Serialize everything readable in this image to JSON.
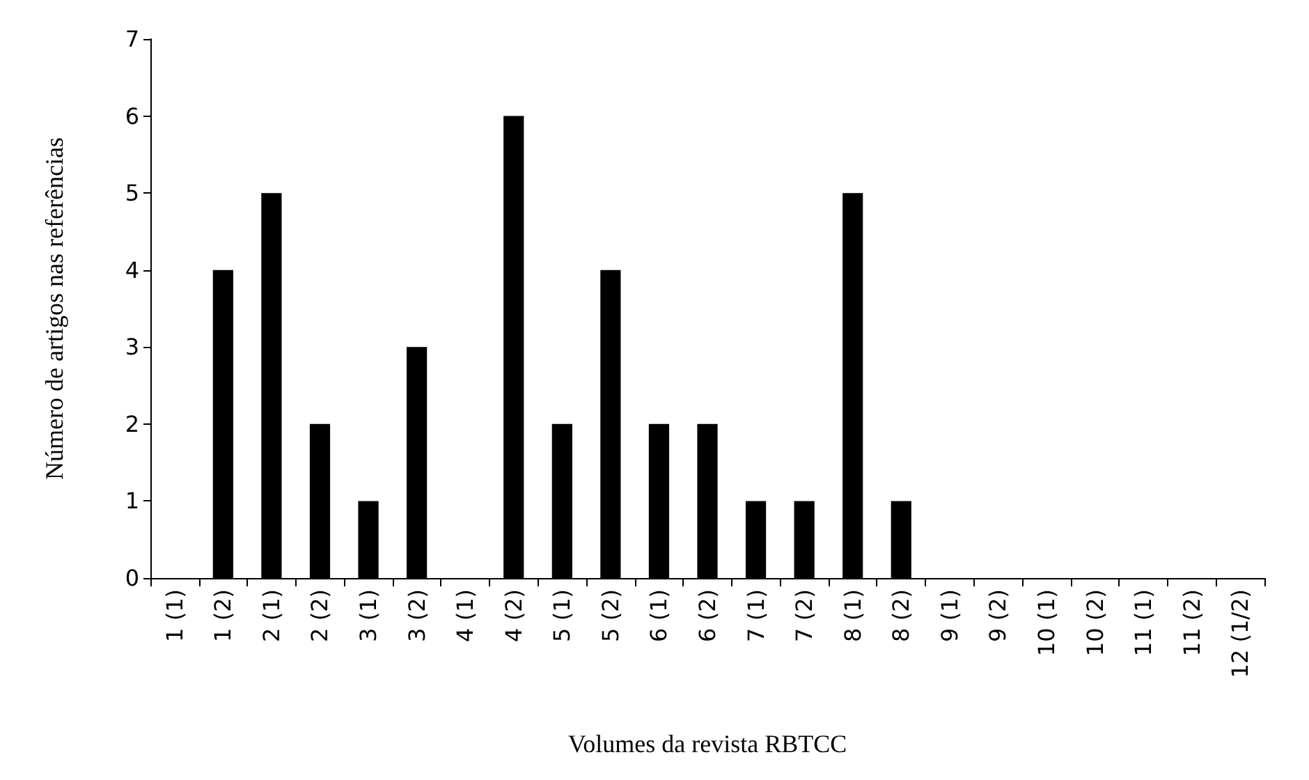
{
  "chart_data": {
    "type": "bar",
    "xlabel": "Volumes da revista RBTCC",
    "ylabel": "Número de artigos nas referências",
    "categories": [
      "1 (1)",
      "1 (2)",
      "2 (1)",
      "2 (2)",
      "3 (1)",
      "3 (2)",
      "4 (1)",
      "4 (2)",
      "5 (1)",
      "5 (2)",
      "6 (1)",
      "6 (2)",
      "7 (1)",
      "7 (2)",
      "8 (1)",
      "8 (2)",
      "9 (1)",
      "9 (2)",
      "10 (1)",
      "10 (2)",
      "11 (1)",
      "11 (2)",
      "12 (1/2)"
    ],
    "values": [
      0,
      4,
      5,
      2,
      1,
      3,
      0,
      6,
      2,
      4,
      2,
      2,
      1,
      1,
      5,
      1,
      0,
      0,
      0,
      0,
      0,
      0,
      0
    ],
    "color": "#000000",
    "ylim": [
      0,
      7
    ],
    "yticks": [
      0,
      1,
      2,
      3,
      4,
      5,
      6,
      7
    ],
    "grid": false
  }
}
